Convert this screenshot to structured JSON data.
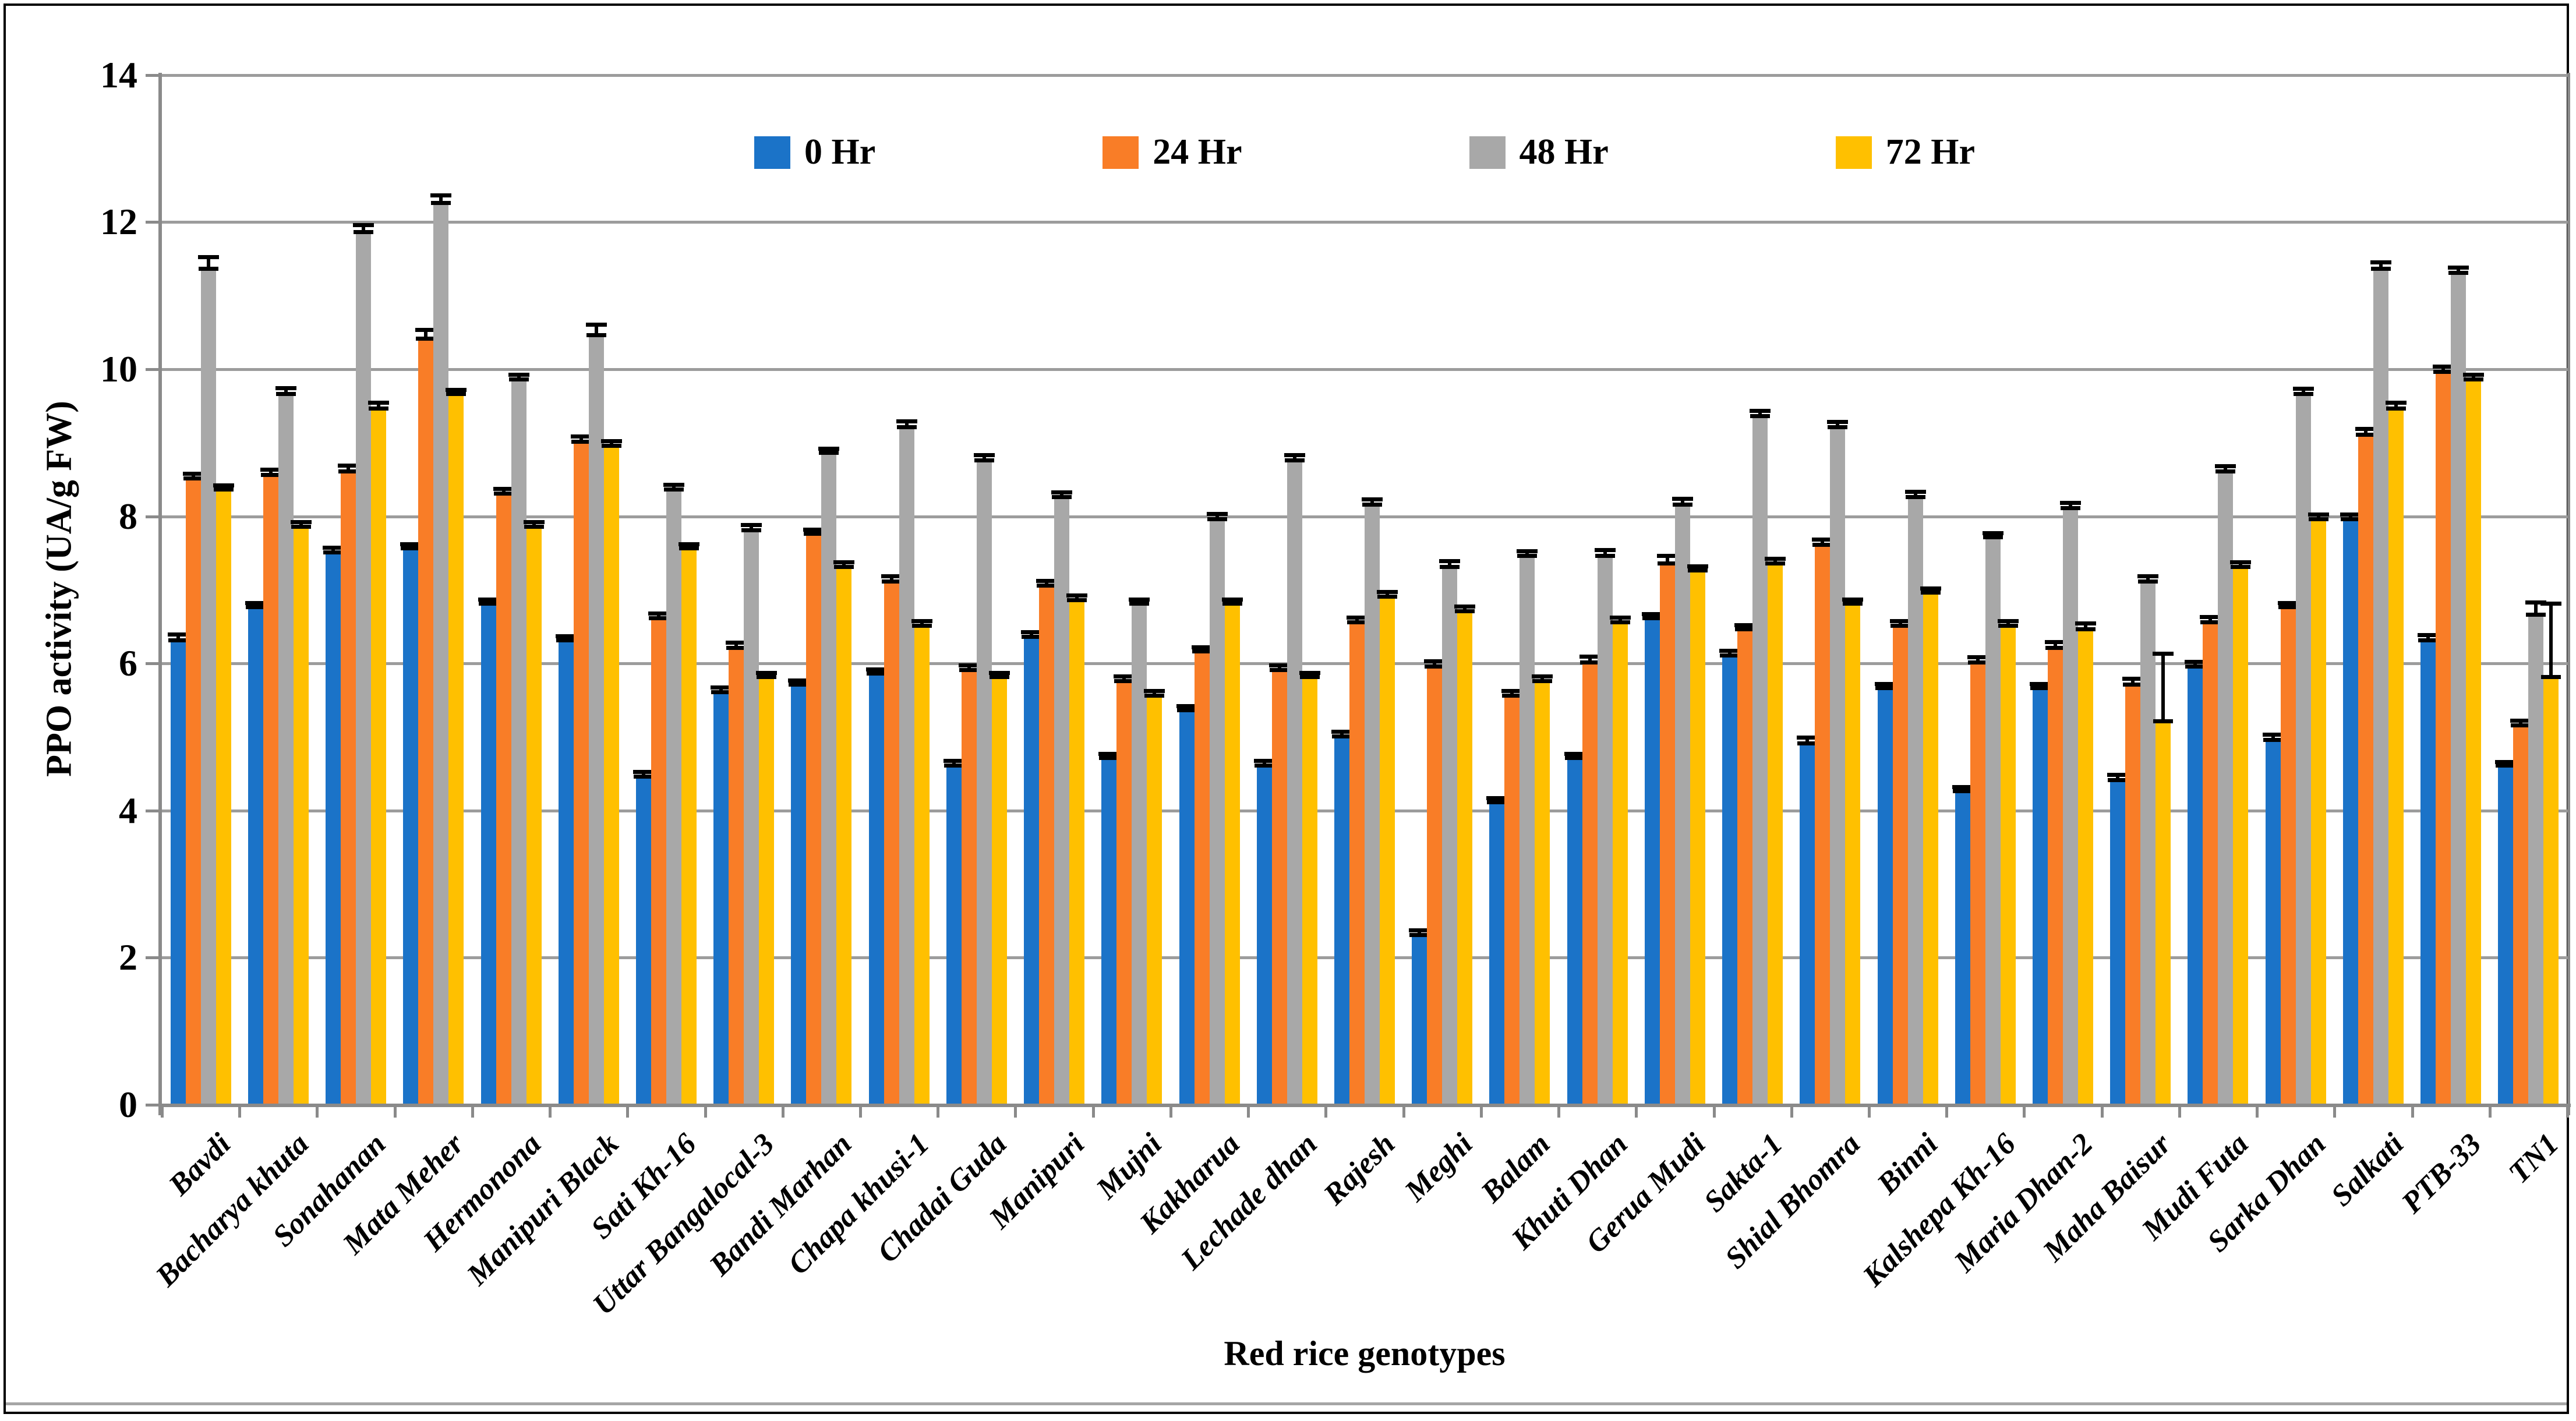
{
  "figure": {
    "background": "#ffffff",
    "border_color": "#000000",
    "bottom_rule_color": "#a6a6a6"
  },
  "chart_data": {
    "type": "bar",
    "title": "",
    "xlabel": "Red rice genotypes",
    "ylabel": "PPO activity (UA/g FW)",
    "ylim": [
      0,
      14
    ],
    "y_ticks": [
      0,
      2,
      4,
      6,
      8,
      10,
      12,
      14
    ],
    "grid": "horizontal",
    "legend_position": "top-center",
    "gridline_color": "#9c9c9c",
    "axis_color": "#8a8a8a",
    "error_bar_color": "#000000",
    "categories": [
      "Bavdi",
      "Bacharya khuta",
      "Sonahanan",
      "Mata Meher",
      "Hermonona",
      "Manipuri Black",
      "Sati Kh-16",
      "Uttar Bangalocal-3",
      "Bandi Marhan",
      "Chapa khusi-1",
      "Chadai Guda",
      "Manipuri",
      "Mujni",
      "Kakharua",
      "Lechade dhan",
      "Rajesh",
      "Meghi",
      "Balam",
      "Khuti Dhan",
      "Gerua Mudi",
      "Sakta-1",
      "Shial Bhomra",
      "Binni",
      "Kalshepa Kh-16",
      "Maria Dhan-2",
      "Maha Baisur",
      "Mudi Futa",
      "Sarka Dhan",
      "Salkati",
      "PTB-33",
      "TN1"
    ],
    "series": [
      {
        "name": "0 Hr",
        "color": "#1b73c8",
        "values": [
          6.3,
          6.75,
          7.5,
          7.55,
          6.8,
          6.3,
          4.45,
          5.6,
          5.7,
          5.85,
          4.6,
          6.35,
          4.7,
          5.35,
          4.6,
          5.0,
          2.3,
          4.1,
          4.7,
          6.6,
          6.1,
          4.9,
          5.65,
          4.25,
          5.65,
          4.4,
          5.95,
          4.95,
          7.95,
          6.3,
          4.6
        ],
        "errors": [
          0.08,
          0.06,
          0.06,
          0.06,
          0.06,
          0.06,
          0.06,
          0.06,
          0.06,
          0.06,
          0.06,
          0.06,
          0.06,
          0.06,
          0.06,
          0.06,
          0.06,
          0.06,
          0.06,
          0.06,
          0.06,
          0.08,
          0.06,
          0.06,
          0.06,
          0.07,
          0.06,
          0.07,
          0.06,
          0.07,
          0.05
        ]
      },
      {
        "name": "24 Hr",
        "color": "#f97d27",
        "values": [
          8.5,
          8.55,
          8.6,
          10.4,
          8.3,
          9.0,
          6.6,
          6.2,
          7.75,
          7.1,
          5.9,
          7.05,
          5.75,
          6.15,
          5.9,
          6.55,
          5.95,
          5.55,
          6.0,
          7.35,
          6.45,
          7.6,
          6.5,
          6.0,
          6.2,
          5.7,
          6.55,
          6.75,
          9.1,
          9.95,
          5.15
        ],
        "errors": [
          0.07,
          0.07,
          0.08,
          0.12,
          0.06,
          0.07,
          0.07,
          0.07,
          0.06,
          0.07,
          0.06,
          0.06,
          0.06,
          0.06,
          0.06,
          0.06,
          0.07,
          0.06,
          0.08,
          0.1,
          0.06,
          0.07,
          0.06,
          0.07,
          0.08,
          0.08,
          0.07,
          0.06,
          0.08,
          0.07,
          0.06
        ]
      },
      {
        "name": "48 Hr",
        "color": "#a8a8a8",
        "values": [
          11.35,
          9.65,
          11.85,
          12.25,
          9.85,
          10.45,
          8.35,
          7.8,
          8.85,
          9.2,
          8.75,
          8.25,
          6.8,
          7.95,
          8.75,
          8.15,
          7.3,
          7.45,
          7.45,
          8.15,
          9.35,
          9.2,
          8.25,
          7.7,
          8.1,
          7.1,
          8.6,
          9.65,
          11.35,
          11.3,
          6.65
        ],
        "errors": [
          0.16,
          0.08,
          0.1,
          0.1,
          0.06,
          0.14,
          0.07,
          0.07,
          0.06,
          0.08,
          0.07,
          0.06,
          0.06,
          0.07,
          0.07,
          0.07,
          0.08,
          0.06,
          0.08,
          0.08,
          0.07,
          0.07,
          0.07,
          0.06,
          0.07,
          0.07,
          0.07,
          0.07,
          0.09,
          0.07,
          0.17
        ]
      },
      {
        "name": "72 Hr",
        "color": "#ffc000",
        "values": [
          8.35,
          7.85,
          9.45,
          9.65,
          7.85,
          8.95,
          7.55,
          5.8,
          7.3,
          6.5,
          5.8,
          6.85,
          5.55,
          6.8,
          5.8,
          6.9,
          6.7,
          5.75,
          6.55,
          7.25,
          7.35,
          6.8,
          6.95,
          6.5,
          6.45,
          5.2,
          7.3,
          7.95,
          9.45,
          9.85,
          5.8
        ],
        "errors": [
          0.06,
          0.06,
          0.08,
          0.06,
          0.06,
          0.06,
          0.06,
          0.06,
          0.06,
          0.06,
          0.06,
          0.06,
          0.06,
          0.06,
          0.06,
          0.06,
          0.06,
          0.06,
          0.06,
          0.06,
          0.06,
          0.06,
          0.06,
          0.06,
          0.08,
          0.92,
          0.06,
          0.06,
          0.08,
          0.06,
          1.0
        ]
      }
    ]
  }
}
